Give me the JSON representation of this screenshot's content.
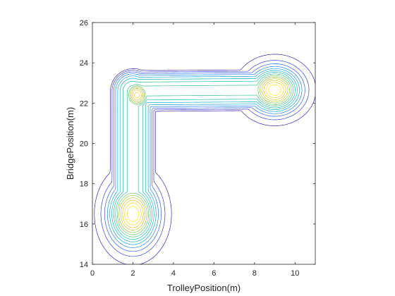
{
  "chart_data": {
    "type": "contour",
    "title": "",
    "xlabel": "TrolleyPosition(m)",
    "ylabel": "BridgePosition(m)",
    "xlim": [
      0,
      11
    ],
    "ylim": [
      14,
      26
    ],
    "xticks": [
      0,
      2,
      4,
      6,
      8,
      10
    ],
    "yticks": [
      14,
      16,
      18,
      20,
      22,
      24,
      26
    ],
    "grid": false,
    "colormap": [
      "#3e26a8",
      "#2d5ced",
      "#1d9de2",
      "#13bbb9",
      "#4cc77f",
      "#a8c83a",
      "#f1bd36",
      "#f9e819"
    ],
    "hotspots": [
      {
        "x": 2.0,
        "y": 16.5,
        "rx": 0.75,
        "ry": 1.0,
        "peak": 1.0
      },
      {
        "x": 2.2,
        "y": 22.4,
        "rx": 0.45,
        "ry": 0.5,
        "peak": 0.9
      },
      {
        "x": 9.0,
        "y": 22.65,
        "rx": 0.8,
        "ry": 0.7,
        "peak": 1.0
      }
    ],
    "corridors": [
      {
        "from": [
          2.0,
          16.5
        ],
        "to": [
          2.0,
          22.6
        ],
        "halfwidth": 1.15,
        "level": 0.55
      },
      {
        "from": [
          2.0,
          22.6
        ],
        "to": [
          9.0,
          22.65
        ],
        "halfwidth": 1.05,
        "level": 0.55
      }
    ],
    "levels": 14
  }
}
